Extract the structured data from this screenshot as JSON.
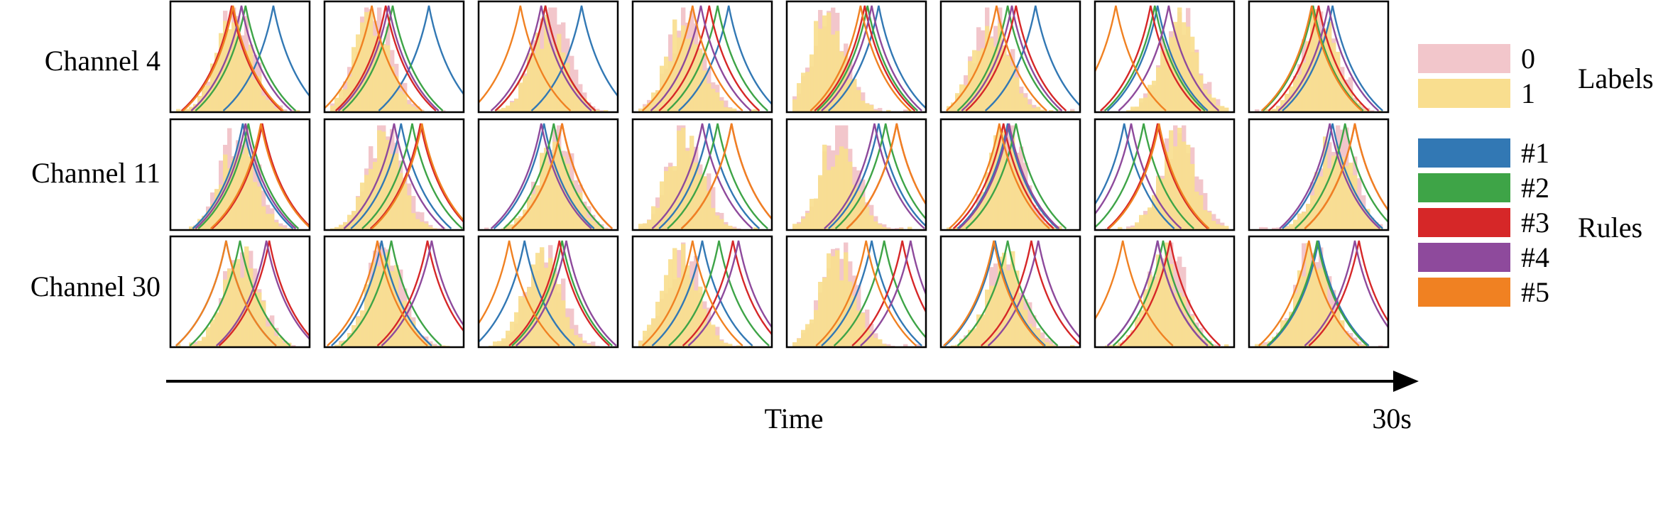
{
  "colors": {
    "label_0": "#f2c6cb",
    "label_1": "#f9de8f",
    "rule_1": "#3278b4",
    "rule_2": "#3ea447",
    "rule_3": "#d62728",
    "rule_4": "#8e4a9c",
    "rule_5": "#f08122",
    "frame": "#000000"
  },
  "chart_data": {
    "type": "histogram-grid",
    "rows": [
      "Channel 4",
      "Channel 11",
      "Channel 30"
    ],
    "columns": 8,
    "grid": false,
    "legend": {
      "labels": {
        "title": "Labels",
        "items": [
          "0",
          "1"
        ]
      },
      "rules": {
        "title": "Rules",
        "items": [
          "#1",
          "#2",
          "#3",
          "#4",
          "#5"
        ]
      },
      "placement": "right"
    },
    "axis": {
      "label": "Time",
      "end_label": "30s"
    },
    "histogram_centers": [
      [
        0.45,
        0.32,
        0.5,
        0.36,
        0.27,
        0.34,
        0.6,
        0.5
      ],
      [
        0.48,
        0.42,
        0.55,
        0.36,
        0.35,
        0.45,
        0.6,
        0.62
      ],
      [
        0.5,
        0.42,
        0.45,
        0.33,
        0.35,
        0.45,
        0.5,
        0.45
      ]
    ],
    "rule_peaks": [
      [
        [
          0.74,
          0.54,
          0.44,
          0.51,
          0.45
        ],
        [
          0.75,
          0.49,
          0.44,
          0.46,
          0.34
        ],
        [
          0.74,
          0.48,
          0.48,
          0.45,
          0.3
        ],
        [
          0.69,
          0.61,
          0.55,
          0.49,
          0.43
        ],
        [
          0.66,
          0.58,
          0.56,
          0.61,
          0.53
        ],
        [
          0.68,
          0.48,
          0.54,
          0.51,
          0.4
        ],
        [
          0.45,
          0.43,
          0.4,
          0.53,
          0.15
        ],
        [
          0.6,
          0.46,
          0.5,
          0.57,
          0.45
        ]
      ],
      [
        [
          0.52,
          0.56,
          0.66,
          0.54,
          0.65
        ],
        [
          0.55,
          0.63,
          0.69,
          0.5,
          0.7
        ],
        [
          0.47,
          0.54,
          0.6,
          0.45,
          0.6
        ],
        [
          0.55,
          0.61,
          0.71,
          0.5,
          0.71
        ],
        [
          0.66,
          0.71,
          0.79,
          0.63,
          0.79
        ],
        [
          0.48,
          0.54,
          0.45,
          0.49,
          0.42
        ],
        [
          0.21,
          0.35,
          0.45,
          0.26,
          0.46
        ],
        [
          0.6,
          0.69,
          0.76,
          0.58,
          0.76
        ]
      ],
      [
        [
          0.4,
          0.5,
          0.71,
          0.69,
          0.4
        ],
        [
          0.41,
          0.48,
          0.74,
          0.77,
          0.38
        ],
        [
          0.33,
          0.6,
          0.58,
          0.63,
          0.22
        ],
        [
          0.5,
          0.62,
          0.72,
          0.76,
          0.43
        ],
        [
          0.61,
          0.7,
          0.83,
          0.89,
          0.57
        ],
        [
          0.39,
          0.48,
          0.65,
          0.7,
          0.38
        ],
        [
          0.45,
          0.49,
          0.54,
          0.45,
          0.2
        ],
        [
          0.5,
          0.49,
          0.79,
          0.76,
          0.43
        ]
      ]
    ]
  }
}
